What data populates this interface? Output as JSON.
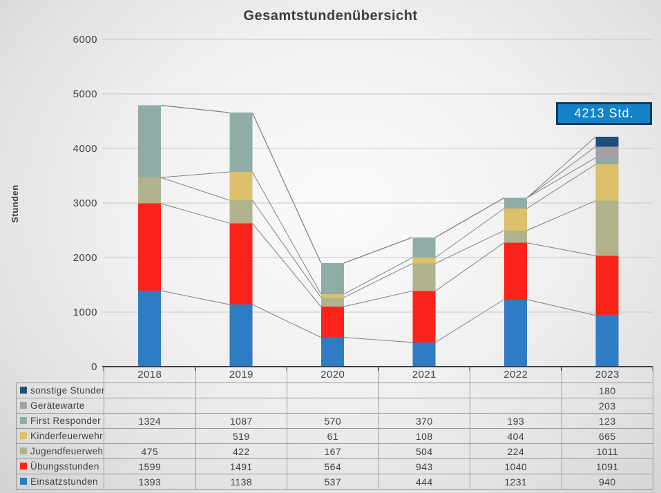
{
  "title": "Gesamtstundenübersicht",
  "y_axis_title": "Stunden",
  "callout": {
    "text": "4213 Std.",
    "fill": "#1482c8",
    "border": "#10395c"
  },
  "colors": {
    "grid": "#c8c8c8",
    "axis": "#3f3f3f",
    "series_line": "#808080",
    "text": "#3f3f3f",
    "table_border": "#999999"
  },
  "chart_data": {
    "type": "bar",
    "stacked": true,
    "title": "Gesamtstundenübersicht",
    "xlabel": "",
    "ylabel": "Stunden",
    "ylim": [
      0,
      6000
    ],
    "ytick_step": 1000,
    "grid": true,
    "series_lines": true,
    "legend_position": "table-left",
    "categories": [
      "2018",
      "2019",
      "2020",
      "2021",
      "2022",
      "2023"
    ],
    "series": [
      {
        "name": "Einsatzstunden",
        "color": "#2e7cc3",
        "values": [
          1393,
          1138,
          537,
          444,
          1231,
          940
        ]
      },
      {
        "name": "Übungsstunden",
        "color": "#fb241b",
        "values": [
          1599,
          1491,
          564,
          943,
          1040,
          1091
        ]
      },
      {
        "name": "Jugendfeuerwehr",
        "color": "#b0b38c",
        "values": [
          475,
          422,
          167,
          504,
          224,
          1011
        ]
      },
      {
        "name": "Kinderfeuerwehr",
        "color": "#ddc06c",
        "values": [
          null,
          519,
          61,
          108,
          404,
          665
        ]
      },
      {
        "name": "First Responder",
        "color": "#8fada6",
        "values": [
          1324,
          1087,
          570,
          370,
          193,
          123
        ]
      },
      {
        "name": "Gerätewarte",
        "color": "#a5a0a5",
        "values": [
          null,
          null,
          null,
          null,
          null,
          203
        ]
      },
      {
        "name": "sonstige Stunden",
        "color": "#1f4e79",
        "values": [
          null,
          null,
          null,
          null,
          null,
          180
        ]
      }
    ]
  }
}
